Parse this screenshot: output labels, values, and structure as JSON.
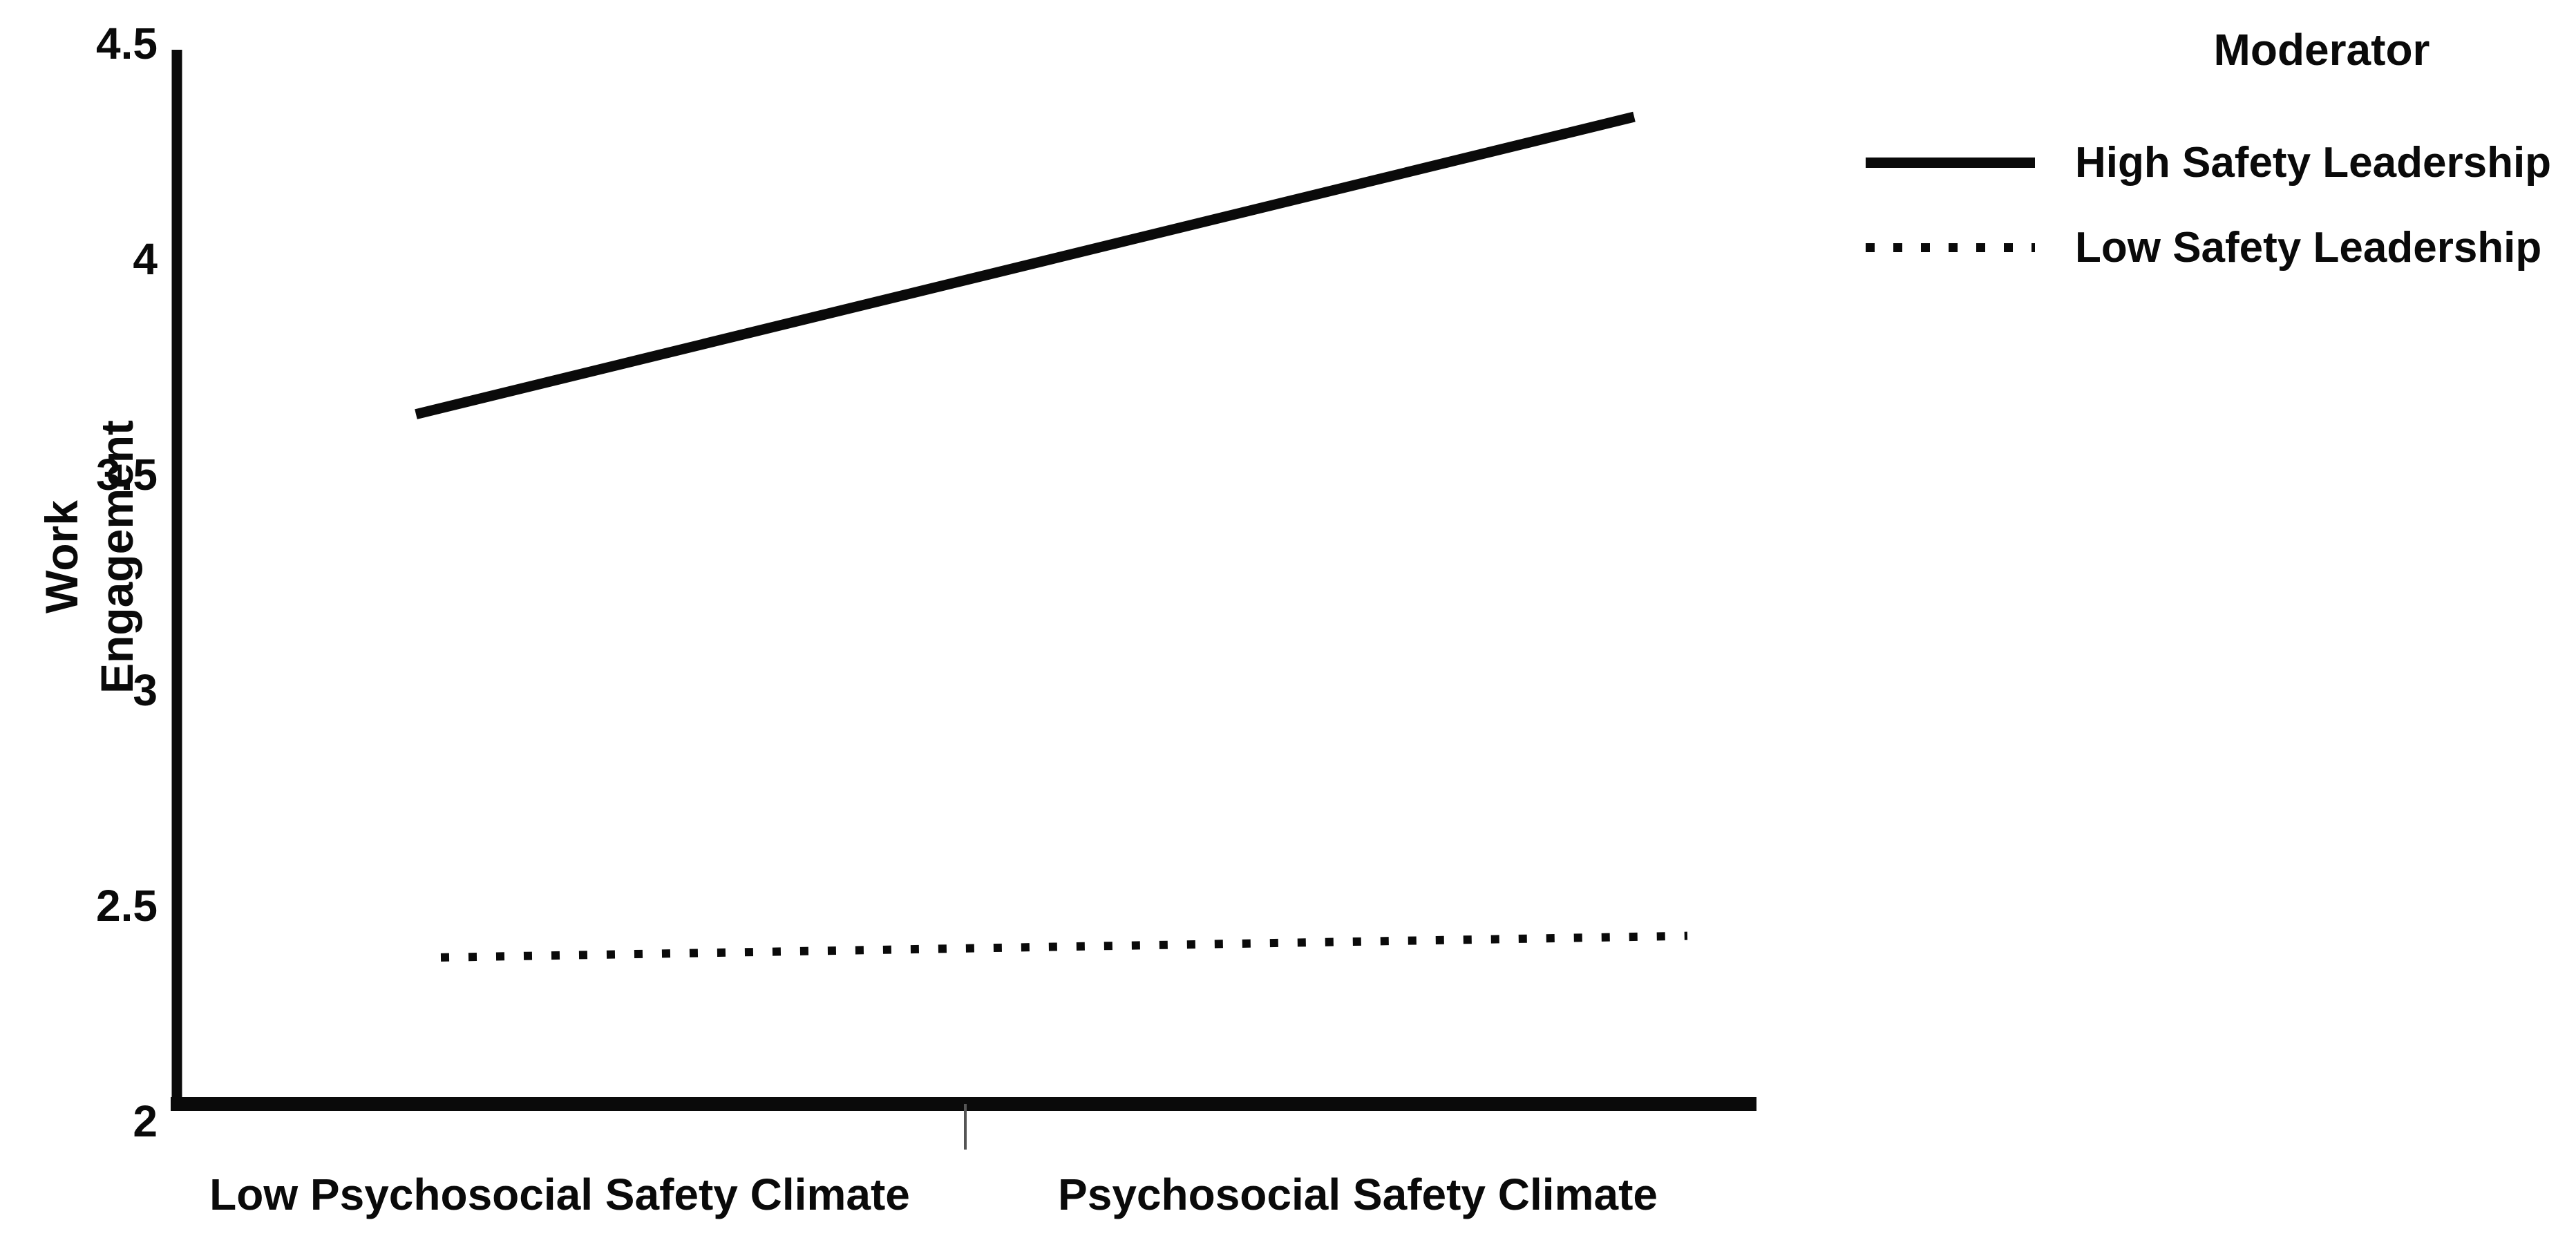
{
  "chart_data": {
    "type": "line",
    "title": "",
    "ylabel": "Work Engagement",
    "xlabel": "",
    "categories": [
      "Low Psychosocial Safety Climate",
      "Psychosocial Safety Climate"
    ],
    "ylim": [
      2,
      4.5
    ],
    "yticks": [
      4.5,
      4,
      3.5,
      3,
      2.5,
      2
    ],
    "grid": false,
    "legend_title": "Moderator",
    "legend_position": "top-right",
    "series": [
      {
        "name": "High Safety Leadership",
        "style": "solid",
        "values": [
          3.64,
          4.33
        ]
      },
      {
        "name": "Low Safety Leadership",
        "style": "dotted",
        "values": [
          2.38,
          2.43
        ]
      }
    ],
    "colors": {
      "line": "#0a0a0a",
      "background": "#ffffff",
      "tick_mark": "#555555"
    }
  }
}
